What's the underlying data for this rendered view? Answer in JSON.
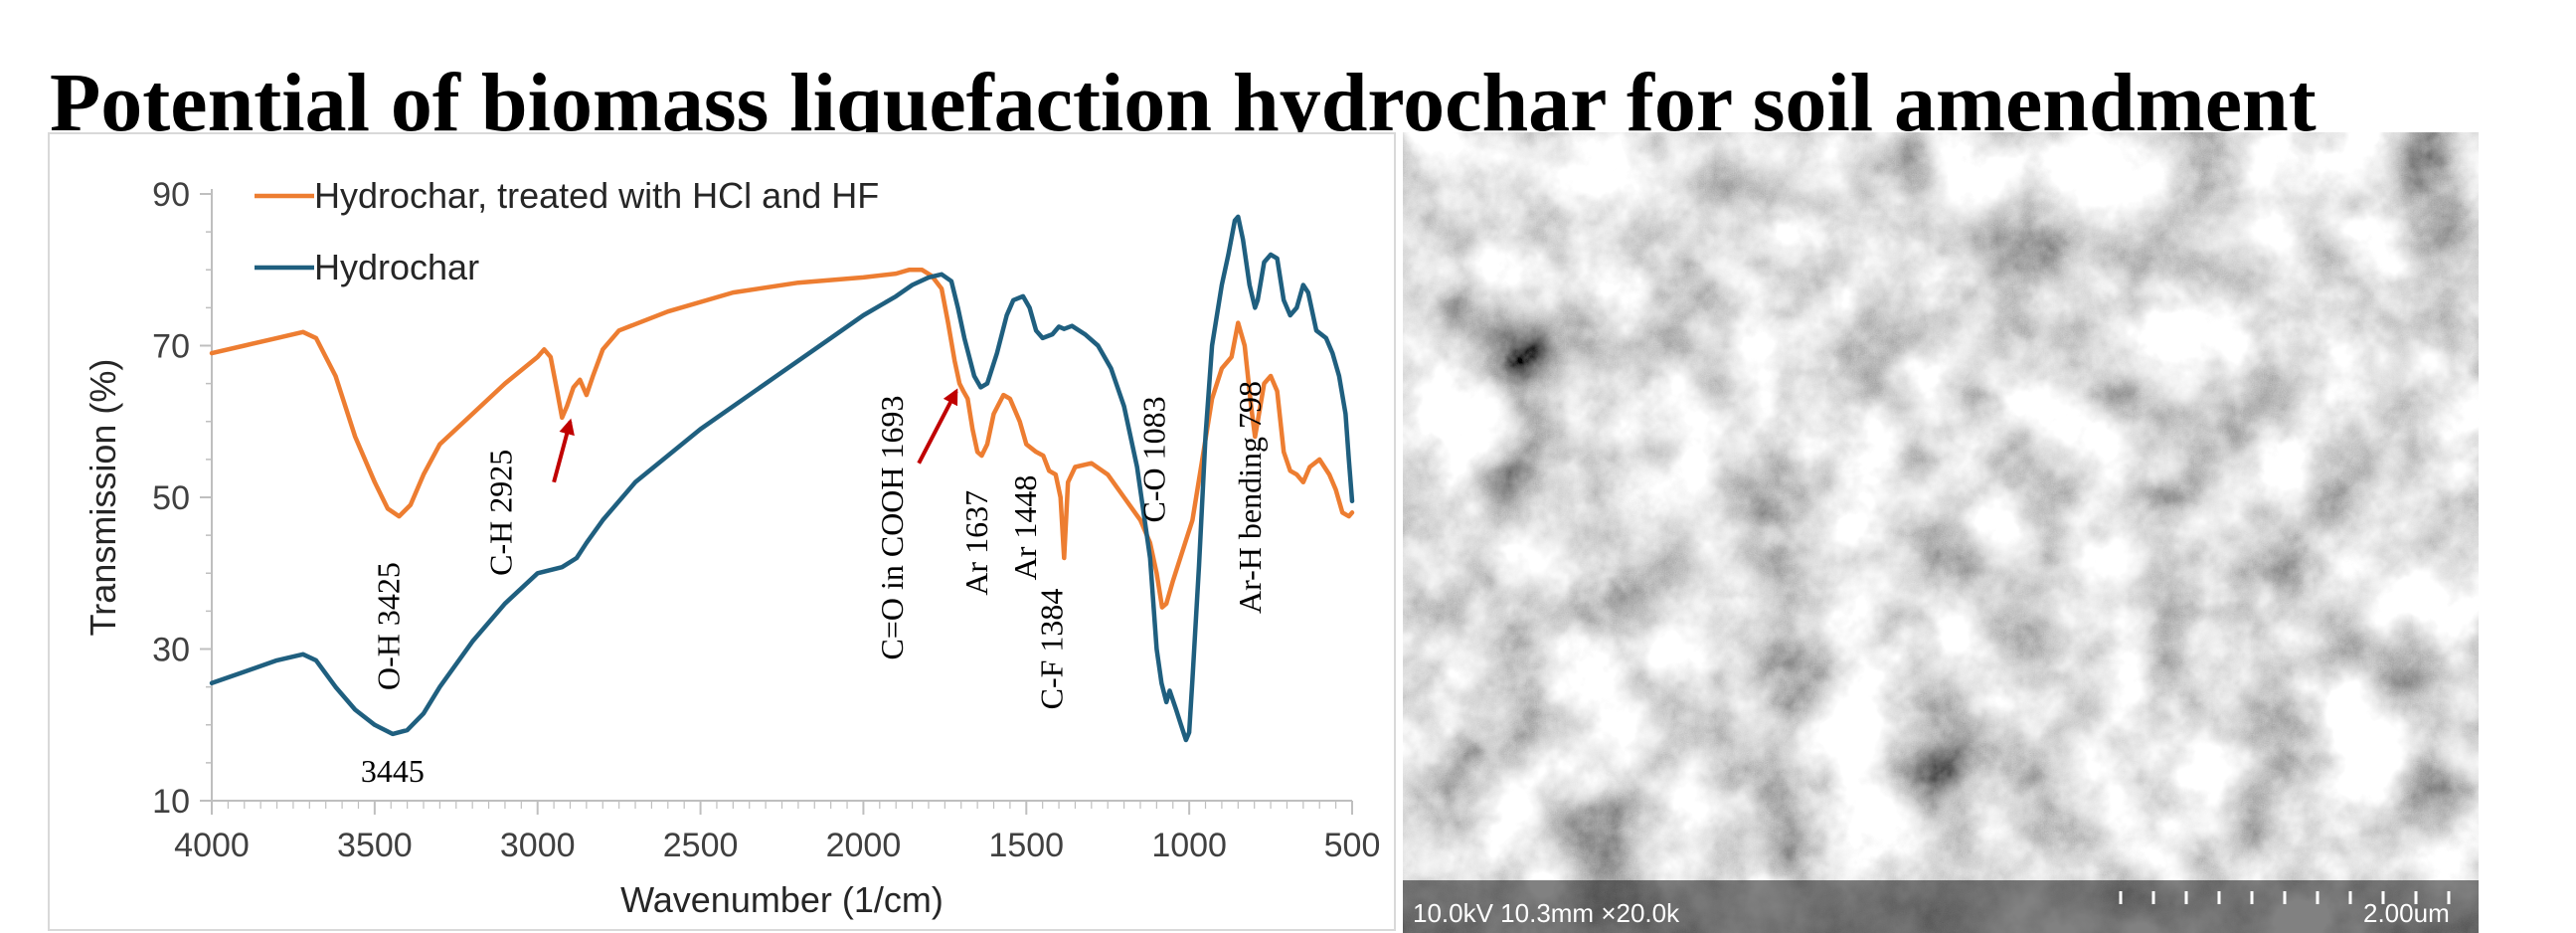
{
  "title": "Potential of biomass liquefaction hydrochar for soil amendment",
  "colors": {
    "hydrochar_treated": "#ed7d31",
    "hydrochar": "#1f5f7f",
    "arrow": "#c00000"
  },
  "chart_data": {
    "type": "line",
    "xlabel": "Wavenumber (1/cm)",
    "ylabel": "Transmission (%)",
    "xlim": [
      4000,
      500
    ],
    "ylim": [
      10,
      90
    ],
    "x_reversed": true,
    "xticks": [
      4000,
      3500,
      3000,
      2500,
      2000,
      1500,
      1000,
      500
    ],
    "yticks": [
      10,
      30,
      50,
      70,
      90
    ],
    "grid": false,
    "legend_position": "top-left",
    "series": [
      {
        "name": "Hydrochar, treated with HCl and HF",
        "color": "#ed7d31",
        "points": [
          [
            4000,
            69
          ],
          [
            3900,
            70
          ],
          [
            3800,
            71
          ],
          [
            3720,
            71.8
          ],
          [
            3680,
            71
          ],
          [
            3620,
            66
          ],
          [
            3560,
            58
          ],
          [
            3500,
            52
          ],
          [
            3460,
            48.5
          ],
          [
            3425,
            47.5
          ],
          [
            3390,
            49
          ],
          [
            3350,
            53
          ],
          [
            3300,
            57
          ],
          [
            3200,
            61
          ],
          [
            3100,
            65
          ],
          [
            3000,
            68.5
          ],
          [
            2980,
            69.5
          ],
          [
            2960,
            68.5
          ],
          [
            2940,
            64
          ],
          [
            2925,
            60.5
          ],
          [
            2910,
            62
          ],
          [
            2890,
            64.5
          ],
          [
            2870,
            65.5
          ],
          [
            2850,
            63.5
          ],
          [
            2830,
            66
          ],
          [
            2800,
            69.5
          ],
          [
            2750,
            72
          ],
          [
            2600,
            74.5
          ],
          [
            2400,
            77
          ],
          [
            2200,
            78.3
          ],
          [
            2000,
            79
          ],
          [
            1900,
            79.5
          ],
          [
            1860,
            80
          ],
          [
            1820,
            80
          ],
          [
            1790,
            79.2
          ],
          [
            1760,
            77.5
          ],
          [
            1740,
            73
          ],
          [
            1720,
            68
          ],
          [
            1705,
            65
          ],
          [
            1693,
            64
          ],
          [
            1680,
            63
          ],
          [
            1665,
            59
          ],
          [
            1650,
            56
          ],
          [
            1637,
            55.5
          ],
          [
            1620,
            57
          ],
          [
            1600,
            61
          ],
          [
            1570,
            63.5
          ],
          [
            1550,
            63
          ],
          [
            1520,
            60
          ],
          [
            1500,
            57
          ],
          [
            1470,
            56
          ],
          [
            1448,
            55.5
          ],
          [
            1430,
            53.5
          ],
          [
            1410,
            53
          ],
          [
            1395,
            50
          ],
          [
            1384,
            42
          ],
          [
            1372,
            52
          ],
          [
            1350,
            54
          ],
          [
            1300,
            54.5
          ],
          [
            1250,
            53
          ],
          [
            1200,
            50
          ],
          [
            1150,
            47
          ],
          [
            1120,
            44
          ],
          [
            1100,
            40
          ],
          [
            1083,
            35.5
          ],
          [
            1070,
            36
          ],
          [
            1050,
            39
          ],
          [
            1020,
            43
          ],
          [
            990,
            47
          ],
          [
            960,
            55
          ],
          [
            930,
            63
          ],
          [
            900,
            67
          ],
          [
            870,
            68.5
          ],
          [
            850,
            73
          ],
          [
            830,
            70
          ],
          [
            810,
            62
          ],
          [
            798,
            58
          ],
          [
            790,
            60
          ],
          [
            770,
            65
          ],
          [
            750,
            66
          ],
          [
            730,
            64
          ],
          [
            710,
            56
          ],
          [
            690,
            53.5
          ],
          [
            670,
            53
          ],
          [
            650,
            52
          ],
          [
            630,
            54
          ],
          [
            600,
            55
          ],
          [
            570,
            53
          ],
          [
            550,
            51
          ],
          [
            530,
            48
          ],
          [
            510,
            47.5
          ],
          [
            500,
            48
          ]
        ]
      },
      {
        "name": "Hydrochar",
        "color": "#1f5f7f",
        "points": [
          [
            4000,
            25.5
          ],
          [
            3900,
            27
          ],
          [
            3800,
            28.5
          ],
          [
            3720,
            29.3
          ],
          [
            3680,
            28.5
          ],
          [
            3620,
            25
          ],
          [
            3560,
            22
          ],
          [
            3500,
            20
          ],
          [
            3445,
            18.8
          ],
          [
            3400,
            19.3
          ],
          [
            3350,
            21.5
          ],
          [
            3300,
            25
          ],
          [
            3200,
            31
          ],
          [
            3100,
            36
          ],
          [
            3000,
            40
          ],
          [
            2925,
            40.8
          ],
          [
            2880,
            42
          ],
          [
            2850,
            44
          ],
          [
            2800,
            47
          ],
          [
            2700,
            52
          ],
          [
            2500,
            59
          ],
          [
            2300,
            65
          ],
          [
            2100,
            71
          ],
          [
            2000,
            74
          ],
          [
            1900,
            76.5
          ],
          [
            1850,
            78
          ],
          [
            1800,
            79
          ],
          [
            1760,
            79.4
          ],
          [
            1730,
            78.5
          ],
          [
            1710,
            75
          ],
          [
            1690,
            71
          ],
          [
            1660,
            66
          ],
          [
            1640,
            64.5
          ],
          [
            1620,
            65
          ],
          [
            1590,
            69
          ],
          [
            1560,
            74
          ],
          [
            1540,
            76
          ],
          [
            1510,
            76.5
          ],
          [
            1490,
            75
          ],
          [
            1470,
            72
          ],
          [
            1450,
            71
          ],
          [
            1420,
            71.5
          ],
          [
            1400,
            72.5
          ],
          [
            1384,
            72.2
          ],
          [
            1360,
            72.6
          ],
          [
            1320,
            71.5
          ],
          [
            1280,
            70
          ],
          [
            1240,
            67
          ],
          [
            1200,
            62
          ],
          [
            1160,
            54
          ],
          [
            1120,
            42
          ],
          [
            1100,
            30
          ],
          [
            1085,
            25.5
          ],
          [
            1070,
            23
          ],
          [
            1060,
            24.5
          ],
          [
            1040,
            22
          ],
          [
            1025,
            20
          ],
          [
            1010,
            18
          ],
          [
            1000,
            19
          ],
          [
            990,
            26
          ],
          [
            970,
            41
          ],
          [
            950,
            58
          ],
          [
            930,
            70
          ],
          [
            900,
            78
          ],
          [
            880,
            82
          ],
          [
            860,
            86.5
          ],
          [
            850,
            87
          ],
          [
            835,
            84
          ],
          [
            815,
            78
          ],
          [
            798,
            75
          ],
          [
            790,
            76
          ],
          [
            770,
            81
          ],
          [
            750,
            82
          ],
          [
            730,
            81.5
          ],
          [
            710,
            76
          ],
          [
            690,
            74
          ],
          [
            670,
            75
          ],
          [
            650,
            78
          ],
          [
            635,
            77
          ],
          [
            610,
            72
          ],
          [
            580,
            71
          ],
          [
            560,
            69
          ],
          [
            540,
            66
          ],
          [
            520,
            61
          ],
          [
            510,
            55
          ],
          [
            500,
            49.5
          ]
        ]
      }
    ],
    "annotations": [
      {
        "text": "O-H 3425",
        "x": 3425,
        "y": 33
      },
      {
        "text": "3445",
        "x": 3445,
        "y": 12.5
      },
      {
        "text": "C-H 2925",
        "x": 3080,
        "y": 48
      },
      {
        "text": "C=O in COOH  1693",
        "x": 1880,
        "y": 46
      },
      {
        "text": "Ar 1637",
        "x": 1620,
        "y": 44
      },
      {
        "text": "Ar 1448",
        "x": 1470,
        "y": 46
      },
      {
        "text": "C-F 1384",
        "x": 1390,
        "y": 30
      },
      {
        "text": "C-O 1083",
        "x": 1075,
        "y": 55
      },
      {
        "text": "Ar-H bending 798",
        "x": 780,
        "y": 50
      }
    ],
    "arrows": [
      {
        "from": [
          2950,
          52
        ],
        "to": [
          2900,
          60
        ]
      },
      {
        "from": [
          1830,
          54.5
        ],
        "to": [
          1715,
          64
        ]
      }
    ]
  },
  "sem_image": {
    "caption_left": "10.0kV 10.3mm ×20.0k",
    "scale_label": "2.00um"
  }
}
